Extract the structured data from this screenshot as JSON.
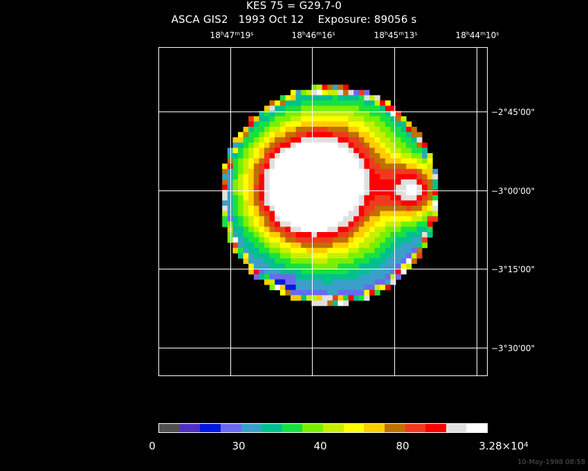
{
  "title": "KES 75 = G29.7-0",
  "subtitle": "ASCA GIS2   1993 Oct 12    Exposure: 89056 s",
  "ra_ticks": [
    {
      "h": "18",
      "m": "47",
      "s": "19"
    },
    {
      "h": "18",
      "m": "46",
      "s": "16"
    },
    {
      "h": "18",
      "m": "45",
      "s": "13"
    },
    {
      "h": "18",
      "m": "44",
      "s": "10"
    }
  ],
  "dec_ticks": [
    "−2°45'00\"",
    "−3°00'00\"",
    "−3°15'00\"",
    "−3°30'00\""
  ],
  "colorbar": {
    "labels": [
      "0",
      "30",
      "40",
      "80",
      "3.28×10"
    ],
    "top_exponent": "4",
    "colors": [
      "#505050",
      "#5030c0",
      "#0018e0",
      "#6a6af0",
      "#3aa0c8",
      "#00c090",
      "#18e040",
      "#78f000",
      "#c8ee00",
      "#ffff00",
      "#ffcc00",
      "#c07000",
      "#f03a20",
      "#ff0000",
      "#e0e0e0",
      "#ffffff"
    ]
  },
  "image_colors": {
    "background": "#000000",
    "grid": "#ffffff"
  },
  "date_stamp": "10-May-1998 08:58"
}
